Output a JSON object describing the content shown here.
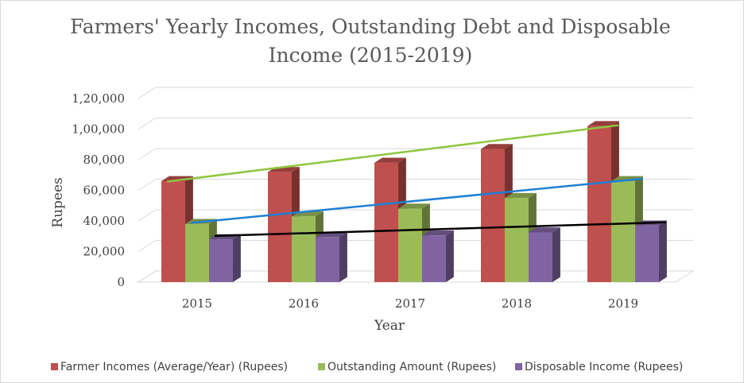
{
  "chart_data": {
    "type": "bar",
    "title_line1": "Farmers' Yearly Incomes, Outstanding Debt and Disposable",
    "title_line2": "Income (2015-2019)",
    "xlabel": "Year",
    "ylabel": "Rupees",
    "categories": [
      "2015",
      "2016",
      "2017",
      "2018",
      "2019"
    ],
    "ylim": [
      0,
      120000
    ],
    "y_ticks": [
      0,
      20000,
      40000,
      60000,
      80000,
      100000,
      120000
    ],
    "y_tick_labels": [
      "0",
      "20,000",
      "40,000",
      "60,000",
      "80,000",
      "1,00,000",
      "1,20,000"
    ],
    "grid": true,
    "legend_position": "bottom",
    "series": [
      {
        "name": "Farmer Incomes (Average/Year) (Rupees)",
        "color": "#c0504d",
        "values": [
          66000,
          72000,
          78000,
          87000,
          102000
        ],
        "trendline_color": "#8ec63f"
      },
      {
        "name": "Outstanding Amount (Rupees)",
        "color": "#9bbb59",
        "values": [
          38000,
          43000,
          48000,
          55000,
          66000
        ],
        "trendline_color": "#1f7fd4"
      },
      {
        "name": "Disposable Income (Rupees)",
        "color": "#8064a2",
        "values": [
          28000,
          29500,
          30500,
          32500,
          37000
        ],
        "trendline_color": "#000000"
      }
    ]
  }
}
